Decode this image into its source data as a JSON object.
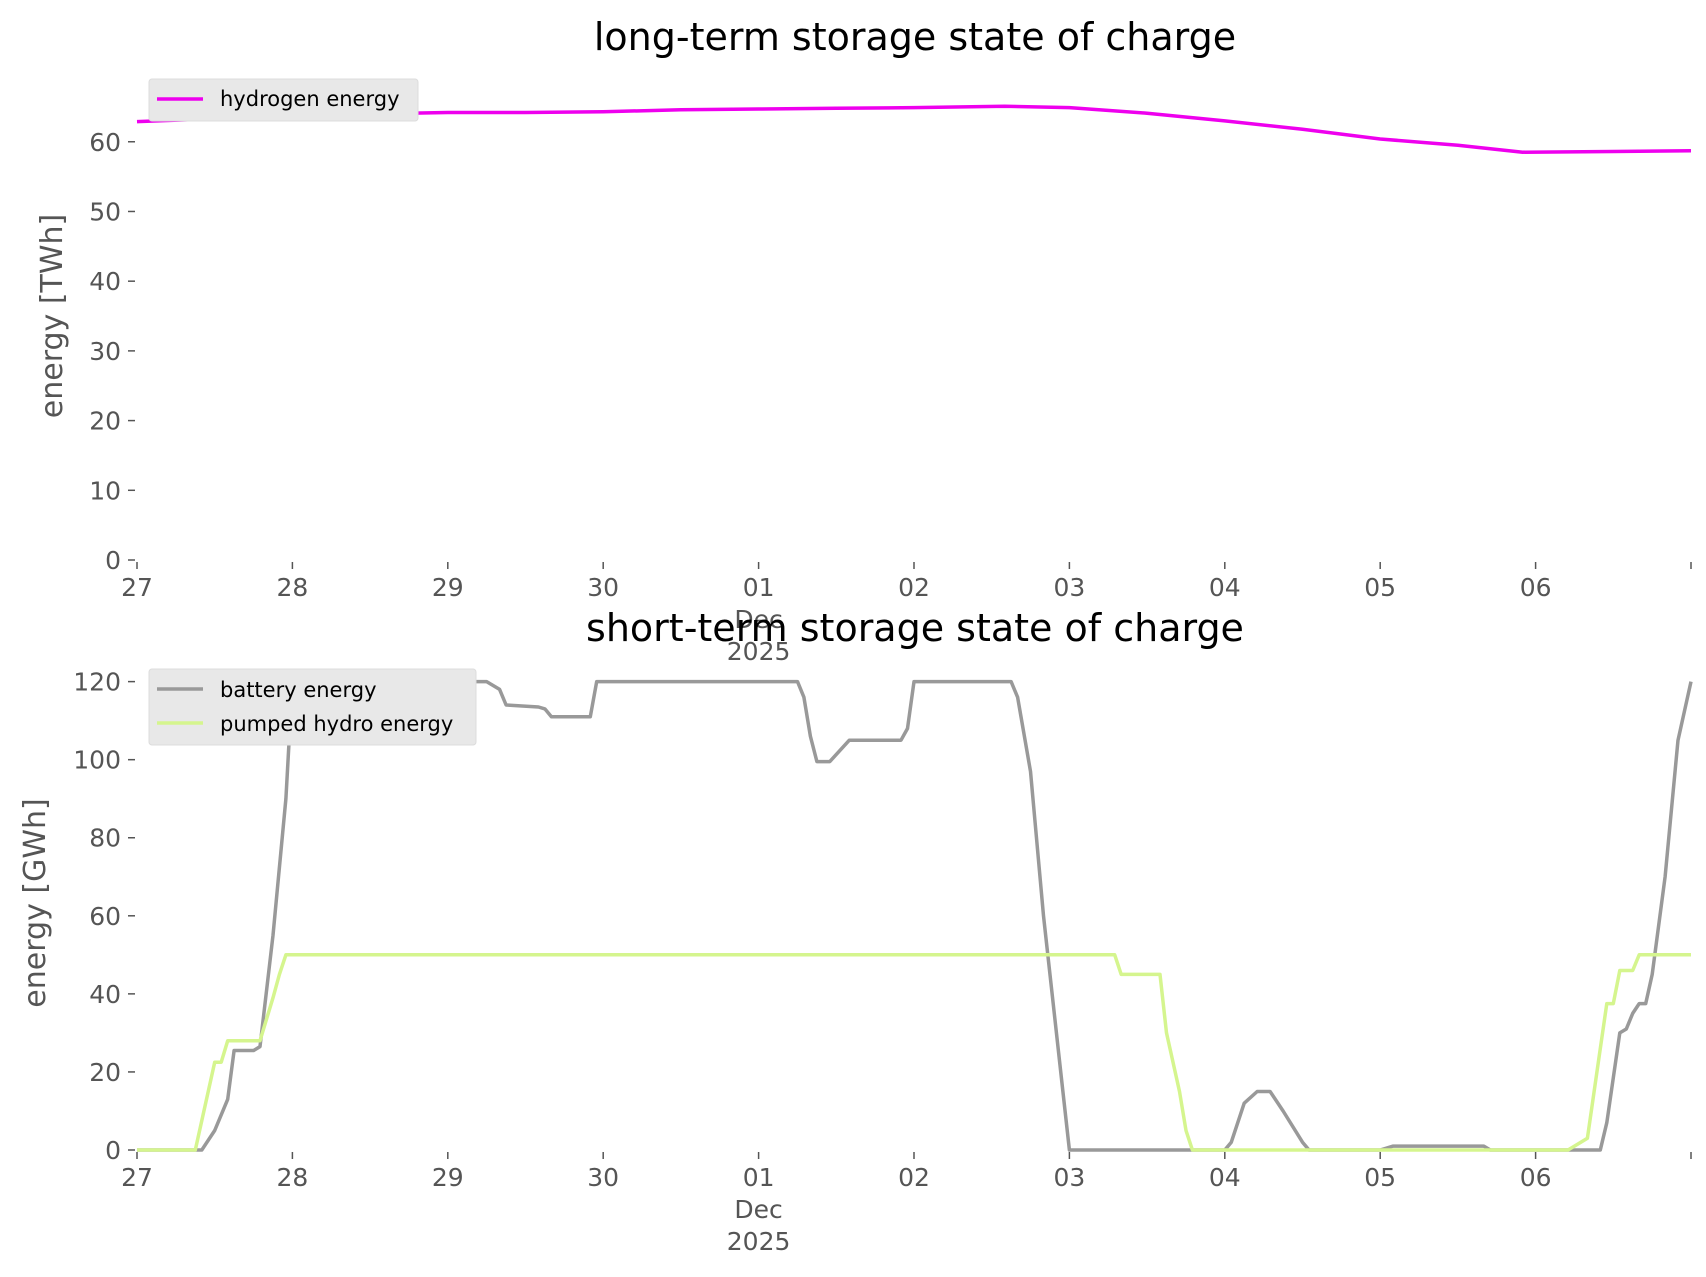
{
  "chart_data": [
    {
      "type": "line",
      "title": "long-term storage state of charge",
      "xlabel": "",
      "ylabel": "energy [TWh]",
      "x_tick_labels": [
        "27",
        "28",
        "29",
        "30",
        "01",
        "02",
        "03",
        "04",
        "05",
        "06"
      ],
      "x_tick_sublabel": [
        "Dec",
        "2025"
      ],
      "xlim": [
        "2025-11-27",
        "2025-12-06 24:00"
      ],
      "ylim": [
        0,
        68
      ],
      "yticks": [
        0,
        10,
        20,
        30,
        40,
        50,
        60
      ],
      "grid": false,
      "legend": "top-left",
      "series": [
        {
          "name": "hydrogen energy",
          "color": "#ee00ee",
          "x": [
            "2025-11-27 00:00",
            "2025-11-27 12:00",
            "2025-11-28 00:00",
            "2025-11-28 12:00",
            "2025-11-29 00:00",
            "2025-11-29 12:00",
            "2025-11-30 00:00",
            "2025-11-30 12:00",
            "2025-12-01 00:00",
            "2025-12-01 12:00",
            "2025-12-02 00:00",
            "2025-12-02 14:00",
            "2025-12-03 00:00",
            "2025-12-03 12:00",
            "2025-12-04 00:00",
            "2025-12-04 12:00",
            "2025-12-05 00:00",
            "2025-12-05 12:00",
            "2025-12-05 22:00",
            "2025-12-06 12:00",
            "2025-12-07 00:00"
          ],
          "values": [
            62.9,
            63.3,
            63.7,
            64.0,
            64.2,
            64.2,
            64.3,
            64.6,
            64.7,
            64.8,
            64.9,
            65.1,
            64.9,
            64.1,
            63.0,
            61.8,
            60.4,
            59.5,
            58.5,
            58.6,
            58.7
          ]
        }
      ]
    },
    {
      "type": "line",
      "title": "short-term storage state of charge",
      "xlabel": "",
      "ylabel": "energy [GWh]",
      "x_tick_labels": [
        "27",
        "28",
        "29",
        "30",
        "01",
        "02",
        "03",
        "04",
        "05",
        "06"
      ],
      "x_tick_sublabel": [
        "Dec",
        "2025"
      ],
      "xlim": [
        "2025-11-27",
        "2025-12-06 24:00"
      ],
      "ylim": [
        0,
        124
      ],
      "yticks": [
        0,
        20,
        40,
        60,
        80,
        100,
        120
      ],
      "grid": false,
      "legend": "top-left",
      "series": [
        {
          "name": "battery energy",
          "color": "#999999",
          "x": [
            "2025-11-27 00:00",
            "2025-11-27 10:00",
            "2025-11-27 12:00",
            "2025-11-27 14:00",
            "2025-11-27 15:00",
            "2025-11-27 18:00",
            "2025-11-27 19:00",
            "2025-11-27 21:00",
            "2025-11-27 23:00",
            "2025-11-28 00:00",
            "2025-11-28 12:00",
            "2025-11-28 14:00",
            "2025-11-28 22:00",
            "2025-11-29 00:00",
            "2025-11-29 06:00",
            "2025-11-29 08:00",
            "2025-11-29 09:00",
            "2025-11-29 14:00",
            "2025-11-29 15:00",
            "2025-11-29 16:00",
            "2025-11-29 22:00",
            "2025-11-29 23:00",
            "2025-12-01 06:00",
            "2025-12-01 07:00",
            "2025-12-01 08:00",
            "2025-12-01 09:00",
            "2025-12-01 11:00",
            "2025-12-01 14:00",
            "2025-12-01 22:00",
            "2025-12-01 23:00",
            "2025-12-02 00:00",
            "2025-12-02 15:00",
            "2025-12-02 16:00",
            "2025-12-02 18:00",
            "2025-12-02 20:00",
            "2025-12-02 23:00",
            "2025-12-03 00:00",
            "2025-12-04 00:00",
            "2025-12-04 01:00",
            "2025-12-04 03:00",
            "2025-12-04 05:00",
            "2025-12-04 07:00",
            "2025-12-04 09:00",
            "2025-12-04 12:00",
            "2025-12-04 13:00",
            "2025-12-05 00:00",
            "2025-12-05 02:00",
            "2025-12-05 16:00",
            "2025-12-05 17:00",
            "2025-12-06 10:00",
            "2025-12-06 11:00",
            "2025-12-06 13:00",
            "2025-12-06 14:00",
            "2025-12-06 15:00",
            "2025-12-06 16:00",
            "2025-12-06 17:00",
            "2025-12-06 18:00",
            "2025-12-06 20:00",
            "2025-12-06 22:00",
            "2025-12-07 00:00"
          ],
          "values": [
            0,
            0,
            5,
            13,
            25.5,
            25.5,
            26.5,
            55,
            90,
            120,
            120,
            119,
            119,
            120,
            120,
            118,
            114,
            113.5,
            113,
            111,
            111,
            120,
            120,
            116,
            106,
            99.5,
            99.5,
            105,
            105,
            108,
            120,
            120,
            116,
            97,
            60,
            15,
            0,
            0,
            2,
            12,
            15,
            15,
            10,
            2,
            0,
            0,
            1,
            1,
            0,
            0,
            7,
            30,
            31,
            35,
            37.5,
            37.5,
            45,
            70,
            105,
            120
          ]
        },
        {
          "name": "pumped hydro energy",
          "color": "#d5f58e",
          "x": [
            "2025-11-27 00:00",
            "2025-11-27 09:00",
            "2025-11-27 12:00",
            "2025-11-27 13:00",
            "2025-11-27 14:00",
            "2025-11-27 19:00",
            "2025-11-27 21:00",
            "2025-11-27 22:00",
            "2025-11-27 23:00",
            "2025-12-03 07:00",
            "2025-12-03 08:00",
            "2025-12-03 14:00",
            "2025-12-03 15:00",
            "2025-12-03 17:00",
            "2025-12-03 18:00",
            "2025-12-03 19:00",
            "2025-12-06 05:00",
            "2025-12-06 08:00",
            "2025-12-06 10:00",
            "2025-12-06 11:00",
            "2025-12-06 12:00",
            "2025-12-06 13:00",
            "2025-12-06 15:00",
            "2025-12-06 16:00",
            "2025-12-06 18:00",
            "2025-12-07 00:00"
          ],
          "values": [
            0,
            0,
            22.5,
            22.5,
            28,
            28,
            39,
            45,
            50,
            50,
            45,
            45,
            30,
            15,
            5,
            0,
            0,
            3,
            26,
            37.5,
            37.5,
            46,
            46,
            50,
            50,
            50
          ]
        }
      ]
    }
  ]
}
